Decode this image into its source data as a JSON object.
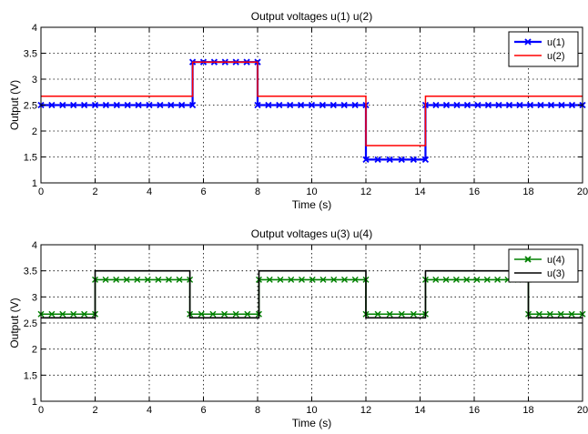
{
  "chart_data": [
    {
      "type": "line",
      "title": "Output voltages u(1) u(2)",
      "xlabel": "Time (s)",
      "ylabel": "Output (V)",
      "xlim": [
        0,
        20
      ],
      "ylim": [
        1,
        4
      ],
      "xticks": [
        0,
        2,
        4,
        6,
        8,
        10,
        12,
        14,
        16,
        18,
        20
      ],
      "yticks": [
        1,
        1.5,
        2,
        2.5,
        3,
        3.5,
        4
      ],
      "grid": true,
      "legend_position": "top-right",
      "series": [
        {
          "name": "u(1)",
          "color": "#0000ff",
          "marker": "x",
          "line_width": 2.2,
          "x": [
            0,
            5.6,
            5.6,
            8,
            8,
            12,
            12,
            14.2,
            14.2,
            20
          ],
          "y": [
            2.5,
            2.5,
            3.33,
            3.33,
            2.5,
            2.5,
            1.45,
            1.45,
            2.5,
            2.5
          ]
        },
        {
          "name": "u(2)",
          "color": "#ff0000",
          "marker": "none",
          "line_width": 1.5,
          "x": [
            0,
            5.6,
            5.6,
            8,
            8,
            12,
            12,
            14.2,
            14.2,
            20
          ],
          "y": [
            2.67,
            2.67,
            3.33,
            3.33,
            2.67,
            2.67,
            1.72,
            1.72,
            2.67,
            2.67
          ]
        }
      ]
    },
    {
      "type": "line",
      "title": "Output voltages u(3) u(4)",
      "xlabel": "Time (s)",
      "ylabel": "Output (V)",
      "xlim": [
        0,
        20
      ],
      "ylim": [
        1,
        4
      ],
      "xticks": [
        0,
        2,
        4,
        6,
        8,
        10,
        12,
        14,
        16,
        18,
        20
      ],
      "yticks": [
        1,
        1.5,
        2,
        2.5,
        3,
        3.5,
        4
      ],
      "grid": true,
      "legend_position": "top-right",
      "series": [
        {
          "name": "u(4)",
          "color": "#008000",
          "marker": "x",
          "line_width": 1.6,
          "x": [
            0,
            2,
            2,
            5.5,
            5.5,
            8.05,
            8.05,
            12,
            12,
            14.2,
            14.2,
            18,
            18,
            20
          ],
          "y": [
            2.67,
            2.67,
            3.33,
            3.33,
            2.67,
            2.67,
            3.33,
            3.33,
            2.67,
            2.67,
            3.33,
            3.33,
            2.67,
            2.67
          ]
        },
        {
          "name": "u(3)",
          "color": "#000000",
          "marker": "none",
          "line_width": 1.6,
          "x": [
            0,
            2,
            2,
            5.5,
            5.5,
            8.05,
            8.05,
            12,
            12,
            14.2,
            14.2,
            18,
            18,
            20
          ],
          "y": [
            2.6,
            2.6,
            3.5,
            3.5,
            2.6,
            2.6,
            3.5,
            3.5,
            2.6,
            2.6,
            3.5,
            3.5,
            2.6,
            2.6
          ]
        }
      ]
    }
  ]
}
